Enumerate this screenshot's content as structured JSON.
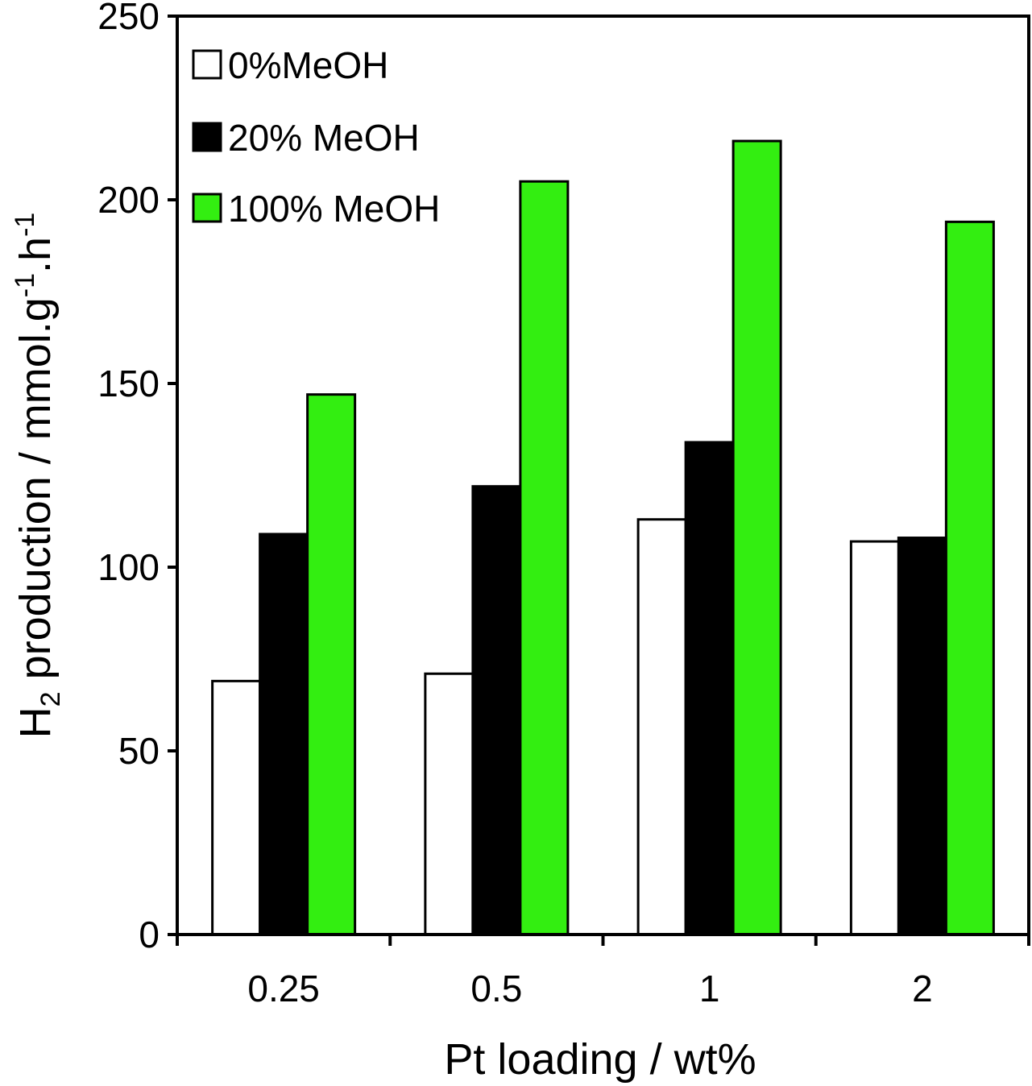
{
  "chart_data": {
    "type": "bar",
    "title": "",
    "xlabel": "Pt loading / wt%",
    "ylabel": {
      "parts": [
        {
          "text": "H",
          "style": "normal"
        },
        {
          "text": "2",
          "style": "sub"
        },
        {
          "text": " production / mmol.g",
          "style": "normal"
        },
        {
          "text": "-1",
          "style": "sup"
        },
        {
          "text": ".h",
          "style": "normal"
        },
        {
          "text": "-1",
          "style": "sup"
        }
      ]
    },
    "categories": [
      "0.25",
      "0.5",
      "1",
      "2"
    ],
    "ylim": [
      0,
      250
    ],
    "yticks": [
      "0",
      "50",
      "100",
      "150",
      "200",
      "250"
    ],
    "grid": false,
    "legend_position": "top-left",
    "series": [
      {
        "name": "0%MeOH",
        "color": "#ffffff",
        "values": [
          69,
          71,
          113,
          107
        ]
      },
      {
        "name": "20% MeOH",
        "color": "#000000",
        "values": [
          109,
          122,
          134,
          108
        ]
      },
      {
        "name": "100% MeOH",
        "color": "#33ee11",
        "values": [
          147,
          205,
          216,
          194
        ]
      }
    ]
  }
}
